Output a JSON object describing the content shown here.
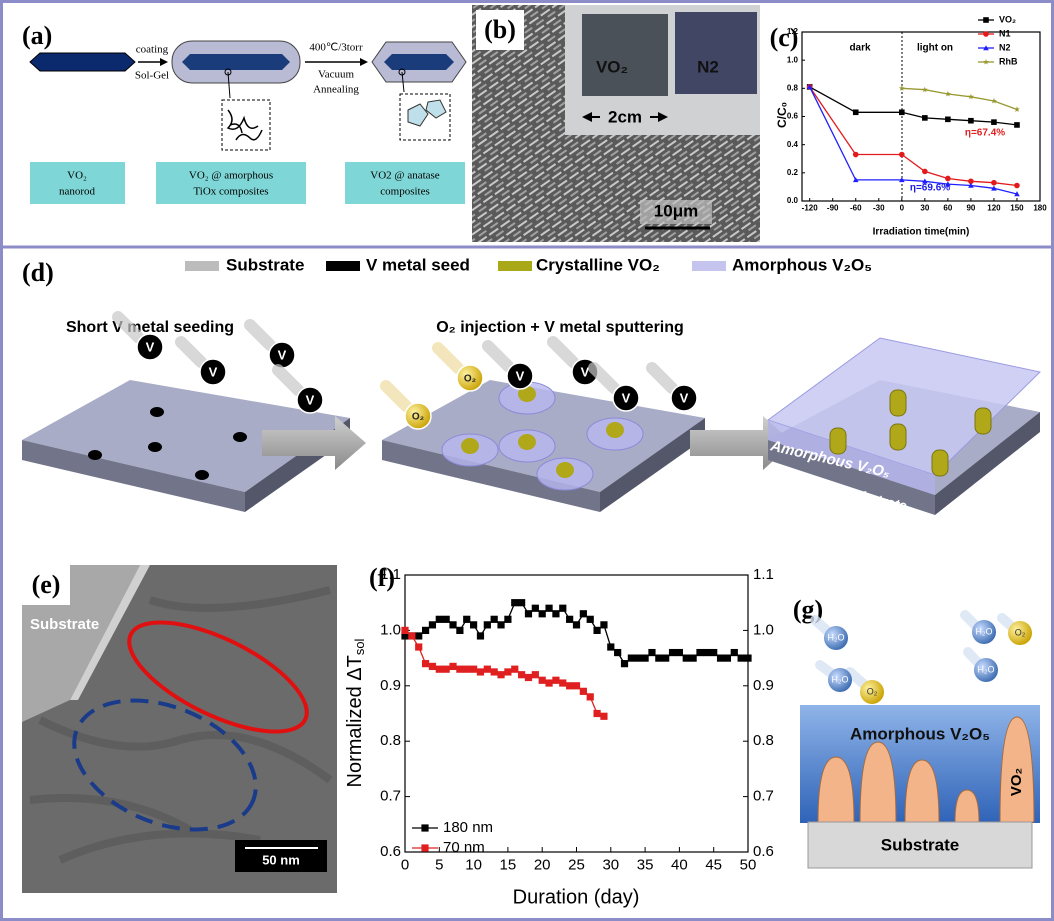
{
  "panels": {
    "a": {
      "label": "(a)",
      "arrow1": [
        "coating",
        "Sol-Gel"
      ],
      "arrow2": [
        "400℃/3torr",
        "Vacuum",
        "Annealing"
      ],
      "boxes": [
        [
          "VO₂",
          "nanorod"
        ],
        [
          "VO₂ @ amorphous",
          "TiOx composites"
        ],
        [
          "VO2 @ anatase",
          "composites"
        ]
      ]
    },
    "b": {
      "label": "(b)",
      "samples": [
        "VO₂",
        "N2"
      ],
      "size": "2cm",
      "scale": "10μm"
    },
    "c": {
      "label": "(c)"
    },
    "d": {
      "label": "(d)",
      "legend": [
        "Substrate",
        "V metal seed",
        "Crystalline VO₂",
        "Amorphous V₂O₅"
      ],
      "steps": [
        "Short V metal seeding",
        "O₂ injection + V metal sputtering"
      ],
      "atom_v": "V",
      "atom_o2": "O₂",
      "substrate": "Substrate",
      "film": "Amorphous V₂O₅"
    },
    "e": {
      "label": "(e)",
      "substrate": "Substrate",
      "scale": "50 nm"
    },
    "f": {
      "label": "(f)"
    },
    "g": {
      "label": "(g)",
      "water": "H₂O",
      "oxygen": "O₂",
      "film": "Amorphous V₂O₅",
      "rod": "VO₂",
      "substrate": "Substrate"
    }
  },
  "chart_data": [
    {
      "type": "line",
      "x_label": "Irradiation time(min)",
      "y_label": "C/C₀",
      "x": [
        -120,
        -60,
        0,
        30,
        60,
        90,
        120,
        150
      ],
      "xlim": [
        -130,
        180
      ],
      "xticks": [
        -120,
        -90,
        -60,
        -30,
        0,
        30,
        60,
        90,
        120,
        150,
        180
      ],
      "ylim": [
        0,
        1.2
      ],
      "yticks": [
        {
          "value": 0,
          "label": "0.0"
        },
        0.2,
        0.4,
        0.6,
        0.8,
        {
          "value": 1,
          "label": "1.0"
        },
        1.2
      ],
      "legend": "upper right",
      "annotations": [
        {
          "text": "dark"
        },
        {
          "text": "light on"
        },
        {
          "text": "η=67.4%",
          "color": "#e0201f"
        },
        {
          "text": "η=69.6%",
          "color": "#1a1ae6"
        }
      ],
      "series": [
        {
          "name": "VO₂",
          "color": "#000000",
          "marker": "square",
          "values": [
            0.81,
            0.63,
            0.63,
            0.59,
            0.58,
            0.57,
            0.56,
            0.54
          ]
        },
        {
          "name": "N1",
          "color": "#e31a1c",
          "marker": "circle",
          "values": [
            0.81,
            0.33,
            0.33,
            0.21,
            0.16,
            0.14,
            0.13,
            0.11
          ]
        },
        {
          "name": "N2",
          "color": "#1f1fff",
          "marker": "triangle",
          "values": [
            0.81,
            0.15,
            0.15,
            0.14,
            0.12,
            0.11,
            0.09,
            0.05
          ]
        },
        {
          "name": "RhB",
          "color": "#999933",
          "marker": "star",
          "values": [
            null,
            null,
            0.8,
            0.79,
            0.76,
            0.74,
            0.71,
            0.65
          ]
        }
      ]
    },
    {
      "type": "line",
      "x_label": "Duration (day)",
      "y_label": "Normalized ΔT",
      "y_label_sub": "sol",
      "xlim": [
        0,
        50
      ],
      "xticks": [
        0,
        5,
        10,
        15,
        20,
        25,
        30,
        35,
        40,
        45,
        50
      ],
      "ylim": [
        0.6,
        1.1
      ],
      "yticks": [
        0.6,
        0.7,
        0.8,
        0.9,
        {
          "value": 1,
          "label": "1.0"
        },
        1.1
      ],
      "y2lim": [
        0.6,
        1.1
      ],
      "y2ticks": [
        0.6,
        0.7,
        0.8,
        0.9,
        {
          "value": 1,
          "label": "1.0"
        },
        1.1
      ],
      "legend": "lower left",
      "series": [
        {
          "name": "180 nm",
          "color": "#000000",
          "marker": "square",
          "x": [
            0,
            1,
            2,
            3,
            4,
            5,
            6,
            7,
            8,
            9,
            10,
            11,
            12,
            13,
            14,
            15,
            16,
            17,
            18,
            19,
            20,
            21,
            22,
            23,
            24,
            25,
            26,
            27,
            28,
            29,
            30,
            31,
            32,
            33,
            34,
            35,
            36,
            37,
            38,
            39,
            40,
            41,
            42,
            43,
            44,
            45,
            46,
            47,
            48,
            49,
            50
          ],
          "values": [
            0.99,
            0.99,
            0.99,
            1.0,
            1.01,
            1.02,
            1.02,
            1.01,
            1.0,
            1.02,
            1.01,
            0.99,
            1.01,
            1.02,
            1.01,
            1.02,
            1.05,
            1.05,
            1.03,
            1.04,
            1.03,
            1.04,
            1.03,
            1.04,
            1.02,
            1.01,
            1.03,
            1.02,
            1.0,
            1.01,
            0.97,
            0.96,
            0.94,
            0.95,
            0.95,
            0.95,
            0.96,
            0.95,
            0.95,
            0.96,
            0.96,
            0.95,
            0.95,
            0.96,
            0.96,
            0.96,
            0.95,
            0.95,
            0.96,
            0.95,
            0.95
          ]
        },
        {
          "name": "70 nm",
          "color": "#e02020",
          "marker": "square",
          "x": [
            0,
            1,
            2,
            3,
            4,
            5,
            6,
            7,
            8,
            9,
            10,
            11,
            12,
            13,
            14,
            15,
            16,
            17,
            18,
            19,
            20,
            21,
            22,
            23,
            24,
            25,
            26,
            27,
            28,
            29
          ],
          "values": [
            1.0,
            0.99,
            0.97,
            0.94,
            0.935,
            0.93,
            0.93,
            0.935,
            0.93,
            0.93,
            0.93,
            0.925,
            0.93,
            0.925,
            0.92,
            0.925,
            0.93,
            0.92,
            0.915,
            0.92,
            0.91,
            0.905,
            0.91,
            0.905,
            0.9,
            0.9,
            0.89,
            0.88,
            0.85,
            0.845
          ]
        }
      ]
    }
  ]
}
